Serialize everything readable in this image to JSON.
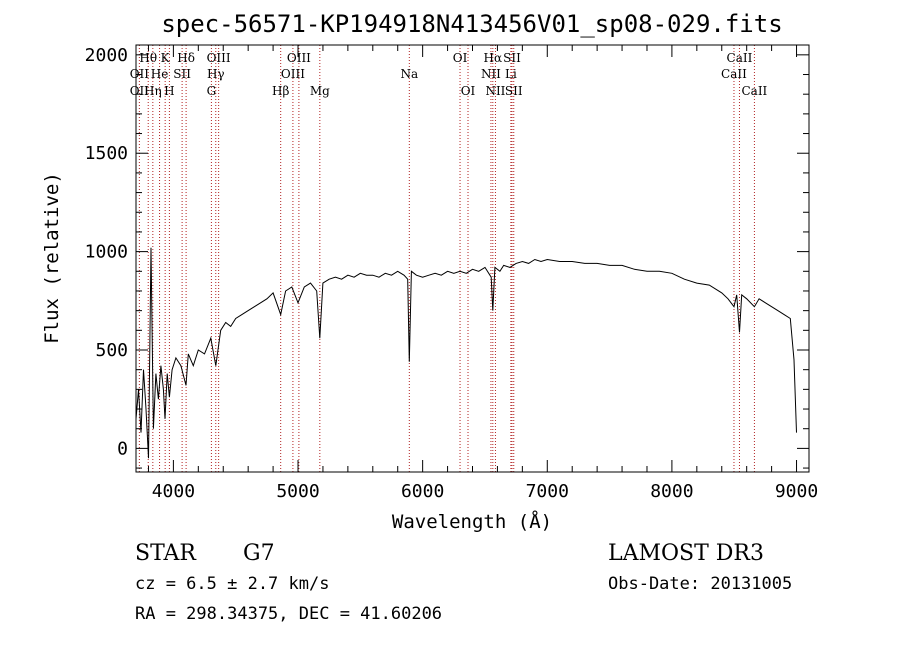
{
  "chart_data": {
    "type": "line",
    "title": "spec-56571-KP194918N413456V01_sp08-029.fits",
    "xlabel": "Wavelength (Å)",
    "ylabel": "Flux (relative)",
    "xlim": [
      3700,
      9100
    ],
    "ylim": [
      -120,
      2050
    ],
    "xticks": [
      4000,
      5000,
      6000,
      7000,
      8000,
      9000
    ],
    "yticks": [
      0,
      500,
      1000,
      1500,
      2000
    ],
    "xtick_labels": [
      "4000",
      "5000",
      "6000",
      "7000",
      "8000",
      "9000"
    ],
    "ytick_labels": [
      "0",
      "500",
      "1000",
      "1500",
      "2000"
    ],
    "series": [
      {
        "name": "flux",
        "x": [
          3700,
          3720,
          3740,
          3760,
          3780,
          3800,
          3820,
          3840,
          3860,
          3880,
          3900,
          3920,
          3933,
          3950,
          3968,
          3990,
          4020,
          4060,
          4101,
          4120,
          4160,
          4200,
          4250,
          4300,
          4340,
          4380,
          4420,
          4460,
          4500,
          4550,
          4600,
          4650,
          4700,
          4750,
          4800,
          4861,
          4900,
          4950,
          5000,
          5050,
          5100,
          5150,
          5175,
          5200,
          5250,
          5300,
          5350,
          5400,
          5450,
          5500,
          5550,
          5600,
          5650,
          5700,
          5750,
          5800,
          5850,
          5880,
          5893,
          5910,
          5950,
          6000,
          6050,
          6100,
          6150,
          6200,
          6250,
          6300,
          6350,
          6400,
          6450,
          6500,
          6550,
          6563,
          6580,
          6620,
          6650,
          6700,
          6750,
          6800,
          6850,
          6900,
          6950,
          7000,
          7100,
          7200,
          7300,
          7400,
          7500,
          7600,
          7700,
          7800,
          7900,
          8000,
          8100,
          8200,
          8300,
          8400,
          8450,
          8498,
          8520,
          8542,
          8560,
          8600,
          8662,
          8700,
          8750,
          8800,
          8850,
          8900,
          8950,
          8980,
          9000
        ],
        "y": [
          150,
          300,
          80,
          400,
          200,
          -50,
          1020,
          100,
          380,
          250,
          420,
          300,
          150,
          380,
          260,
          400,
          460,
          420,
          320,
          480,
          420,
          500,
          480,
          560,
          420,
          600,
          640,
          620,
          660,
          680,
          700,
          720,
          740,
          760,
          790,
          680,
          800,
          820,
          740,
          820,
          840,
          800,
          560,
          840,
          860,
          870,
          860,
          880,
          870,
          890,
          880,
          880,
          870,
          890,
          880,
          900,
          880,
          860,
          440,
          900,
          880,
          870,
          880,
          890,
          880,
          900,
          890,
          900,
          890,
          910,
          900,
          920,
          870,
          700,
          920,
          900,
          930,
          920,
          940,
          950,
          940,
          960,
          950,
          960,
          950,
          950,
          940,
          940,
          930,
          930,
          910,
          900,
          900,
          890,
          860,
          840,
          830,
          790,
          760,
          720,
          780,
          590,
          780,
          760,
          720,
          760,
          740,
          720,
          700,
          680,
          660,
          450,
          80
        ]
      }
    ],
    "spectral_lines": [
      {
        "label": "Hθ",
        "wave": 3798,
        "row": 1
      },
      {
        "label": "OII",
        "wave": 3727,
        "row": 2
      },
      {
        "label": "OII",
        "wave": 3727,
        "row": 3
      },
      {
        "label": "Hη",
        "wave": 3835,
        "row": 3
      },
      {
        "label": "He",
        "wave": 3889,
        "row": 2
      },
      {
        "label": "K",
        "wave": 3934,
        "row": 1
      },
      {
        "label": "H",
        "wave": 3968,
        "row": 3
      },
      {
        "label": "SII",
        "wave": 4070,
        "row": 2
      },
      {
        "label": "Hδ",
        "wave": 4102,
        "row": 1
      },
      {
        "label": "OIII",
        "wave": 4363,
        "row": 1
      },
      {
        "label": "Hγ",
        "wave": 4340,
        "row": 2
      },
      {
        "label": "G",
        "wave": 4305,
        "row": 3
      },
      {
        "label": "Hβ",
        "wave": 4861,
        "row": 3
      },
      {
        "label": "OIII",
        "wave": 4959,
        "row": 2
      },
      {
        "label": "OIII",
        "wave": 5007,
        "row": 1
      },
      {
        "label": "Mg",
        "wave": 5175,
        "row": 3
      },
      {
        "label": "Na",
        "wave": 5893,
        "row": 2
      },
      {
        "label": "OI",
        "wave": 6300,
        "row": 1
      },
      {
        "label": "OI",
        "wave": 6364,
        "row": 3
      },
      {
        "label": "Hα",
        "wave": 6563,
        "row": 1
      },
      {
        "label": "NII",
        "wave": 6548,
        "row": 2
      },
      {
        "label": "NII",
        "wave": 6584,
        "row": 3
      },
      {
        "label": "SII",
        "wave": 6717,
        "row": 1
      },
      {
        "label": "Li",
        "wave": 6708,
        "row": 2
      },
      {
        "label": "SII",
        "wave": 6731,
        "row": 3
      },
      {
        "label": "CaII",
        "wave": 8542,
        "row": 1
      },
      {
        "label": "CaII",
        "wave": 8498,
        "row": 2
      },
      {
        "label": "CaII",
        "wave": 8662,
        "row": 3
      }
    ]
  },
  "info": {
    "class": "STAR",
    "subclass": "G7",
    "survey": "LAMOST DR3",
    "cz": "cz = 6.5 ± 2.7 km/s",
    "obs_date": "Obs-Date: 20131005",
    "coords": "RA = 298.34375, DEC =  41.60206"
  },
  "colors": {
    "line_marker": "#b22222",
    "spectrum": "#000000"
  }
}
